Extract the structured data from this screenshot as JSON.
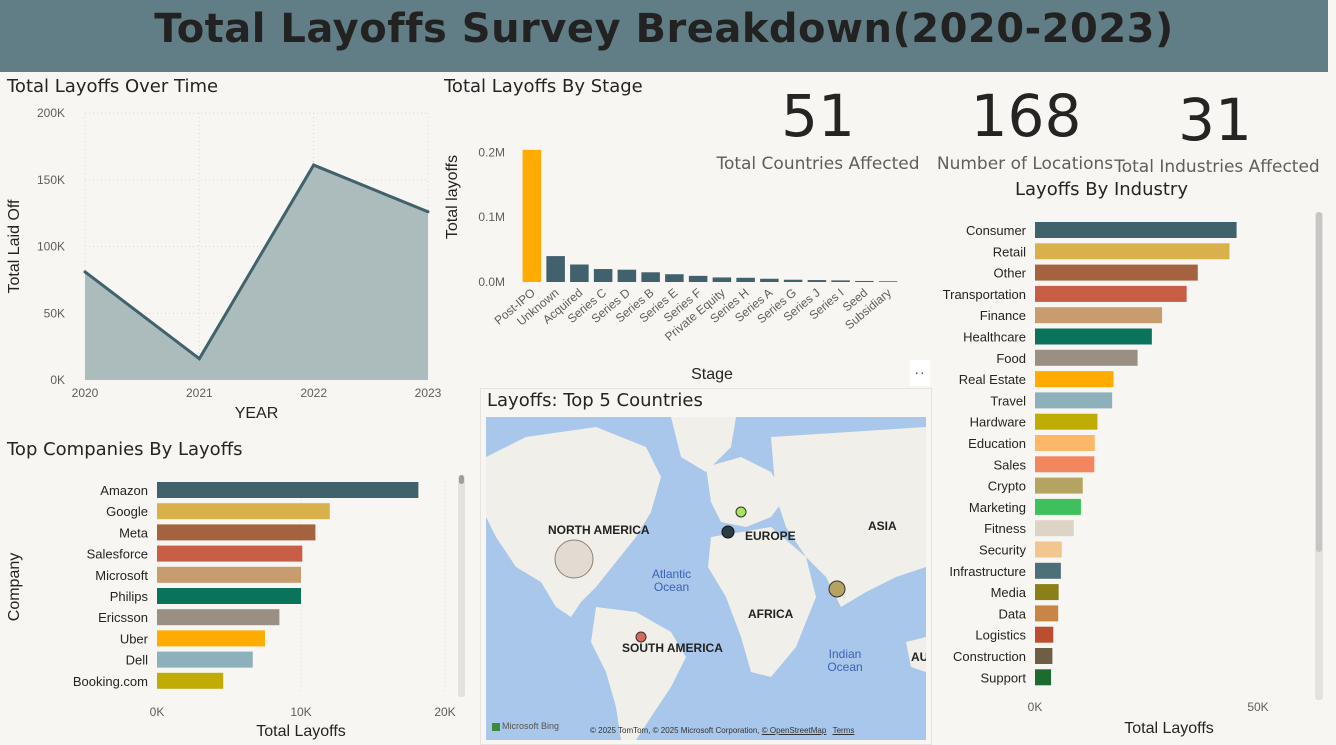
{
  "header": {
    "title": "Total Layoffs Survey Breakdown(2020-2023)"
  },
  "kpis": [
    {
      "value": "51",
      "label": "Total Countries Affected"
    },
    {
      "value": "168",
      "label": "Number of Locations"
    },
    {
      "value": "31",
      "label": "Total Industries Affected"
    }
  ],
  "over_time": {
    "title": "Total Layoffs Over Time"
  },
  "by_stage": {
    "title": "Total Layoffs By Stage"
  },
  "top_companies": {
    "title": "Top Companies By Layoffs"
  },
  "by_industry": {
    "title": "Layoffs By Industry"
  },
  "map": {
    "title": "Layoffs: Top 5 Countries",
    "labels": [
      "NORTH AMERICA",
      "EUROPE",
      "ASIA",
      "AFRICA",
      "SOUTH AMERICA",
      "AU"
    ],
    "oceans": [
      "Atlantic Ocean",
      "Indian Ocean"
    ],
    "logo": "Microsoft Bing",
    "copyright": "© 2025 TomTom, © 2025 Microsoft Corporation,",
    "osm": "© OpenStreetMap",
    "terms": "Terms",
    "colors": {
      "usa": "#e3dad1",
      "india": "#b5a461",
      "netherlands": "#2a3d42",
      "sweden": "#a5e65c",
      "brazil": "#d66a5a"
    }
  },
  "chart_data": [
    {
      "id": "over-time",
      "type": "area",
      "title": "Total Layoffs Over Time",
      "xlabel": "YEAR",
      "ylabel": "Total Laid Off",
      "x": [
        "2020",
        "2021",
        "2022",
        "2023"
      ],
      "values": [
        81000,
        16000,
        161000,
        126000
      ],
      "ylim": [
        0,
        200000
      ],
      "yticks": [
        "0K",
        "50K",
        "100K",
        "150K",
        "200K"
      ],
      "colors": {
        "line": "#41626c",
        "fill": "#acbbbc"
      },
      "grid": true
    },
    {
      "id": "by-stage",
      "type": "bar",
      "title": "Total Layoffs By Stage",
      "xlabel": "Stage",
      "ylabel": "Total layoffs",
      "categories": [
        "Post-IPO",
        "Unknown",
        "Acquired",
        "Series C",
        "Series D",
        "Series B",
        "Series E",
        "Series F",
        "Private Equity",
        "Series H",
        "Series A",
        "Series G",
        "Series J",
        "Series I",
        "Seed",
        "Subsidiary"
      ],
      "values": [
        204000,
        40000,
        27000,
        20000,
        19000,
        15000,
        12000,
        9500,
        7000,
        6500,
        5000,
        3500,
        3000,
        2500,
        1600,
        1100
      ],
      "ylim": [
        0,
        230000
      ],
      "yticks": [
        "0.0M",
        "0.1M",
        "0.2M"
      ],
      "colors": {
        "highlight": "#ffab00",
        "bar": "#41626c"
      }
    },
    {
      "id": "top-companies",
      "type": "bar",
      "orientation": "horizontal",
      "title": "Top Companies By Layoffs",
      "xlabel": "Total Layoffs",
      "ylabel": "Company",
      "categories": [
        "Amazon",
        "Google",
        "Meta",
        "Salesforce",
        "Microsoft",
        "Philips",
        "Ericsson",
        "Uber",
        "Dell",
        "Booking.com"
      ],
      "values": [
        18150,
        12000,
        11000,
        10090,
        10000,
        10000,
        8500,
        7500,
        6650,
        4600
      ],
      "xlim": [
        0,
        20000
      ],
      "xticks": [
        "0K",
        "10K",
        "20K"
      ],
      "colors": [
        "#41626c",
        "#d9b14a",
        "#a4633e",
        "#c85e45",
        "#c79d6e",
        "#0a7359",
        "#9a8f83",
        "#ffab00",
        "#8eb0ba",
        "#bfad05"
      ]
    },
    {
      "id": "by-industry",
      "type": "bar",
      "orientation": "horizontal",
      "title": "Layoffs By Industry",
      "xlabel": "Total Layoffs",
      "categories": [
        "Consumer",
        "Retail",
        "Other",
        "Transportation",
        "Finance",
        "Healthcare",
        "Food",
        "Real Estate",
        "Travel",
        "Hardware",
        "Education",
        "Sales",
        "Crypto",
        "Marketing",
        "Fitness",
        "Security",
        "Infrastructure",
        "Media",
        "Data",
        "Logistics",
        "Construction",
        "Support"
      ],
      "values": [
        45200,
        43600,
        36500,
        34000,
        28500,
        26200,
        23000,
        17600,
        17300,
        14000,
        13400,
        13300,
        10700,
        10300,
        8700,
        6000,
        5800,
        5300,
        5200,
        4100,
        3900,
        3600
      ],
      "xlim": [
        0,
        50000
      ],
      "xticks": [
        "0K",
        "50K"
      ],
      "colors": [
        "#41626c",
        "#d9b14a",
        "#a4633e",
        "#c85e45",
        "#c79d6e",
        "#0a7359",
        "#9a8f83",
        "#ffab00",
        "#8eb0ba",
        "#bfad05",
        "#fcb866",
        "#f2865f",
        "#b5a461",
        "#3ec15c",
        "#ded4c5",
        "#f2c68e",
        "#4e6e79",
        "#8b7f18",
        "#c98545",
        "#ba4e2f",
        "#6d5e45",
        "#1e6b31"
      ]
    }
  ]
}
